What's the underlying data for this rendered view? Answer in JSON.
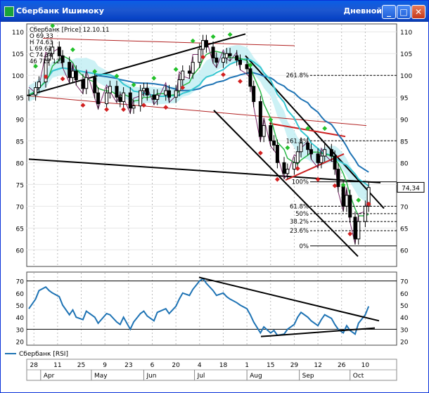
{
  "window": {
    "title": "Сбербанк Ишимоку",
    "right_title": "Дневной",
    "buttons": {
      "minimize": "_",
      "maximize": "□",
      "close": "✕"
    }
  },
  "chart_data": [
    {
      "type": "candlestick",
      "panel": "price",
      "legend_lines": [
        "Сбербанк [Price] 12.10.11",
        "O 69.33",
        "H 74.63",
        "L 69.61",
        "C 74.34",
        "46 717 125"
      ],
      "ylim": [
        57,
        111
      ],
      "yticks": [
        60,
        65,
        70,
        75,
        80,
        85,
        90,
        95,
        100,
        105,
        110
      ],
      "last_price_label": "74,34",
      "fibonacci": {
        "levels": [
          {
            "label": "261.8%",
            "value": 100
          },
          {
            "label": "161.8%",
            "value": 85
          },
          {
            "label": "100%",
            "value": 75.6
          },
          {
            "label": "61.8%",
            "value": 70
          },
          {
            "label": "50%",
            "value": 68.3
          },
          {
            "label": "38.2%",
            "value": 66.5
          },
          {
            "label": "23.6%",
            "value": 64.4
          },
          {
            "label": "0%",
            "value": 60.9
          }
        ]
      },
      "x_start": "2011-03-25",
      "x_end": "2011-10-14",
      "series_close": [
        [
          "2011-03-25",
          95.5
        ],
        [
          "2011-03-29",
          97.2
        ],
        [
          "2011-03-31",
          98.5
        ],
        [
          "2011-04-04",
          103.5
        ],
        [
          "2011-04-06",
          105.0
        ],
        [
          "2011-04-08",
          106.5
        ],
        [
          "2011-04-12",
          104.5
        ],
        [
          "2011-04-14",
          103.0
        ],
        [
          "2011-04-18",
          99.5
        ],
        [
          "2011-04-20",
          101.0
        ],
        [
          "2011-04-22",
          99.0
        ],
        [
          "2011-04-26",
          97.0
        ],
        [
          "2011-04-28",
          99.5
        ],
        [
          "2011-05-03",
          96.0
        ],
        [
          "2011-05-05",
          93.5
        ],
        [
          "2011-05-10",
          96.0
        ],
        [
          "2011-05-12",
          97.5
        ],
        [
          "2011-05-16",
          95.0
        ],
        [
          "2011-05-18",
          94.0
        ],
        [
          "2011-05-20",
          96.0
        ],
        [
          "2011-05-24",
          92.5
        ],
        [
          "2011-05-26",
          93.0
        ],
        [
          "2011-05-30",
          96.5
        ],
        [
          "2011-06-01",
          97.0
        ],
        [
          "2011-06-03",
          95.5
        ],
        [
          "2011-06-07",
          94.5
        ],
        [
          "2011-06-09",
          95.5
        ],
        [
          "2011-06-14",
          96.5
        ],
        [
          "2011-06-16",
          95.0
        ],
        [
          "2011-06-20",
          96.5
        ],
        [
          "2011-06-22",
          99.0
        ],
        [
          "2011-06-24",
          101.0
        ],
        [
          "2011-06-28",
          100.5
        ],
        [
          "2011-06-30",
          103.0
        ],
        [
          "2011-07-04",
          106.0
        ],
        [
          "2011-07-06",
          108.0
        ],
        [
          "2011-07-08",
          106.5
        ],
        [
          "2011-07-12",
          104.0
        ],
        [
          "2011-07-14",
          103.0
        ],
        [
          "2011-07-18",
          104.0
        ],
        [
          "2011-07-20",
          105.0
        ],
        [
          "2011-07-22",
          104.5
        ],
        [
          "2011-07-26",
          103.5
        ],
        [
          "2011-07-28",
          102.5
        ],
        [
          "2011-08-01",
          101.5
        ],
        [
          "2011-08-03",
          97.5
        ],
        [
          "2011-08-05",
          94.0
        ],
        [
          "2011-08-09",
          86.0
        ],
        [
          "2011-08-11",
          88.5
        ],
        [
          "2011-08-15",
          85.0
        ],
        [
          "2011-08-17",
          84.0
        ],
        [
          "2011-08-19",
          80.0
        ],
        [
          "2011-08-23",
          77.5
        ],
        [
          "2011-08-25",
          78.5
        ],
        [
          "2011-08-29",
          80.0
        ],
        [
          "2011-08-31",
          82.5
        ],
        [
          "2011-09-02",
          84.5
        ],
        [
          "2011-09-06",
          83.0
        ],
        [
          "2011-09-08",
          82.0
        ],
        [
          "2011-09-12",
          80.0
        ],
        [
          "2011-09-14",
          81.5
        ],
        [
          "2011-09-16",
          83.0
        ],
        [
          "2011-09-20",
          81.5
        ],
        [
          "2011-09-22",
          78.5
        ],
        [
          "2011-09-24",
          74.5
        ],
        [
          "2011-09-27",
          70.0
        ],
        [
          "2011-09-29",
          72.5
        ],
        [
          "2011-10-01",
          67.5
        ],
        [
          "2011-10-04",
          62.5
        ],
        [
          "2011-10-06",
          66.5
        ],
        [
          "2011-10-10",
          70.0
        ],
        [
          "2011-10-12",
          74.3
        ]
      ]
    },
    {
      "type": "line",
      "panel": "indicator",
      "legend": "Сбербанк [RSI]",
      "ylim": [
        18,
        75
      ],
      "yticks": [
        20,
        30,
        40,
        50,
        60,
        70
      ],
      "hlines": [
        30,
        70
      ],
      "series": [
        {
          "name": "Сбербанк [RSI]",
          "color": "#1e73b4",
          "points": [
            [
              "2011-03-25",
              47
            ],
            [
              "2011-03-29",
              55
            ],
            [
              "2011-03-31",
              62
            ],
            [
              "2011-04-04",
              65
            ],
            [
              "2011-04-06",
              62
            ],
            [
              "2011-04-08",
              60
            ],
            [
              "2011-04-12",
              57
            ],
            [
              "2011-04-14",
              50
            ],
            [
              "2011-04-18",
              42
            ],
            [
              "2011-04-20",
              46
            ],
            [
              "2011-04-22",
              40
            ],
            [
              "2011-04-26",
              38
            ],
            [
              "2011-04-28",
              45
            ],
            [
              "2011-05-03",
              40
            ],
            [
              "2011-05-05",
              35
            ],
            [
              "2011-05-10",
              43
            ],
            [
              "2011-05-12",
              42
            ],
            [
              "2011-05-16",
              36
            ],
            [
              "2011-05-18",
              34
            ],
            [
              "2011-05-20",
              40
            ],
            [
              "2011-05-24",
              30
            ],
            [
              "2011-05-26",
              36
            ],
            [
              "2011-05-30",
              43
            ],
            [
              "2011-06-01",
              45
            ],
            [
              "2011-06-03",
              41
            ],
            [
              "2011-06-07",
              37
            ],
            [
              "2011-06-09",
              44
            ],
            [
              "2011-06-14",
              47
            ],
            [
              "2011-06-16",
              43
            ],
            [
              "2011-06-20",
              49
            ],
            [
              "2011-06-22",
              55
            ],
            [
              "2011-06-24",
              60
            ],
            [
              "2011-06-28",
              58
            ],
            [
              "2011-06-30",
              63
            ],
            [
              "2011-07-04",
              70
            ],
            [
              "2011-07-06",
              72
            ],
            [
              "2011-07-08",
              68
            ],
            [
              "2011-07-12",
              62
            ],
            [
              "2011-07-14",
              58
            ],
            [
              "2011-07-18",
              60
            ],
            [
              "2011-07-20",
              57
            ],
            [
              "2011-07-22",
              55
            ],
            [
              "2011-07-26",
              52
            ],
            [
              "2011-07-28",
              50
            ],
            [
              "2011-08-01",
              47
            ],
            [
              "2011-08-03",
              42
            ],
            [
              "2011-08-05",
              36
            ],
            [
              "2011-08-09",
              27
            ],
            [
              "2011-08-11",
              32
            ],
            [
              "2011-08-15",
              27
            ],
            [
              "2011-08-17",
              29
            ],
            [
              "2011-08-19",
              25
            ],
            [
              "2011-08-23",
              26
            ],
            [
              "2011-08-25",
              30
            ],
            [
              "2011-08-29",
              34
            ],
            [
              "2011-08-31",
              40
            ],
            [
              "2011-09-02",
              44
            ],
            [
              "2011-09-06",
              40
            ],
            [
              "2011-09-08",
              37
            ],
            [
              "2011-09-12",
              33
            ],
            [
              "2011-09-14",
              38
            ],
            [
              "2011-09-16",
              42
            ],
            [
              "2011-09-20",
              39
            ],
            [
              "2011-09-22",
              34
            ],
            [
              "2011-09-24",
              30
            ],
            [
              "2011-09-27",
              27
            ],
            [
              "2011-09-29",
              33
            ],
            [
              "2011-10-01",
              29
            ],
            [
              "2011-10-04",
              26
            ],
            [
              "2011-10-06",
              35
            ],
            [
              "2011-10-10",
              42
            ],
            [
              "2011-10-12",
              49
            ]
          ]
        }
      ]
    }
  ],
  "x_axis": {
    "day_labels": [
      "28",
      "11",
      "25",
      "9",
      "23",
      "6",
      "20",
      "4",
      "18",
      "1",
      "15",
      "29",
      "12",
      "26",
      "10"
    ],
    "month_labels": [
      "Apr",
      "May",
      "Jun",
      "Jul",
      "Aug",
      "Sep",
      "Oct"
    ]
  }
}
